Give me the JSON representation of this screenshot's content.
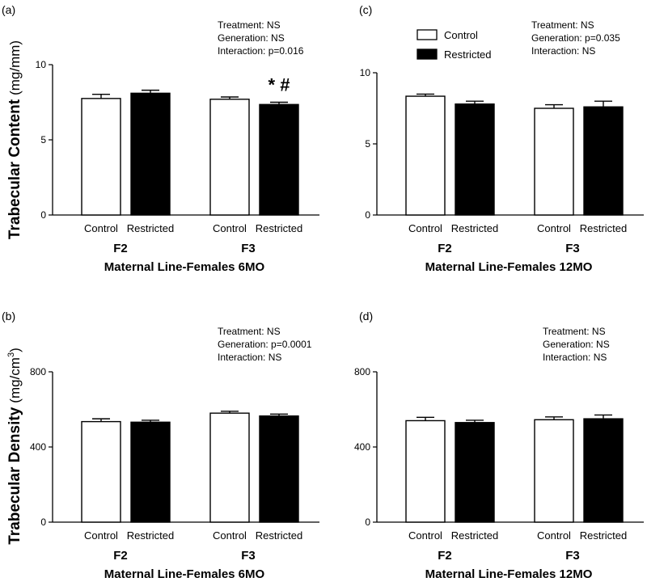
{
  "figure": {
    "y_title_top": "Trabecular Content",
    "y_unit_top": "(mg/mm)",
    "y_title_bottom": "Trabecular Density",
    "y_unit_bottom": "(mg/cm",
    "y_unit_bottom_sup": "3",
    "y_unit_bottom_close": ")"
  },
  "chart_data": [
    {
      "id": "a",
      "type": "bar",
      "panel_label": "(a)",
      "title": "Maternal Line-Females 6MO",
      "groups": [
        "F2",
        "F3"
      ],
      "categories": [
        "Control",
        "Restricted",
        "Control",
        "Restricted"
      ],
      "treatments": [
        "Control",
        "Restricted",
        "Control",
        "Restricted"
      ],
      "values": [
        7.75,
        8.1,
        7.7,
        7.35
      ],
      "errors": [
        0.28,
        0.2,
        0.15,
        0.15
      ],
      "fills": [
        "#ffffff",
        "#000000",
        "#ffffff",
        "#000000"
      ],
      "ylim": [
        0,
        10
      ],
      "yticks": [
        0,
        5,
        10
      ],
      "stats": [
        "Treatment: NS",
        "Generation: NS",
        "Interaction: p=0.016"
      ],
      "marker": "* #",
      "marker_bar": 3
    },
    {
      "id": "c",
      "type": "bar",
      "panel_label": "(c)",
      "title": "Maternal Line-Females 12MO",
      "groups": [
        "F2",
        "F3"
      ],
      "categories": [
        "Control",
        "Restricted",
        "Control",
        "Restricted"
      ],
      "treatments": [
        "Control",
        "Restricted",
        "Control",
        "Restricted"
      ],
      "values": [
        8.35,
        7.8,
        7.5,
        7.6
      ],
      "errors": [
        0.15,
        0.2,
        0.25,
        0.4
      ],
      "fills": [
        "#ffffff",
        "#000000",
        "#ffffff",
        "#000000"
      ],
      "ylim": [
        0,
        10
      ],
      "yticks": [
        0,
        5,
        10
      ],
      "stats": [
        "Treatment: NS",
        "Generation: p=0.035",
        "Interaction: NS"
      ],
      "legend": [
        {
          "label": "Control",
          "fill": "#ffffff"
        },
        {
          "label": "Restricted",
          "fill": "#000000"
        }
      ]
    },
    {
      "id": "b",
      "type": "bar",
      "panel_label": "(b)",
      "title": "Maternal Line-Females 6MO",
      "groups": [
        "F2",
        "F3"
      ],
      "categories": [
        "Control",
        "Restricted",
        "Control",
        "Restricted"
      ],
      "treatments": [
        "Control",
        "Restricted",
        "Control",
        "Restricted"
      ],
      "values": [
        535,
        532,
        580,
        565
      ],
      "errors": [
        15,
        10,
        10,
        10
      ],
      "fills": [
        "#ffffff",
        "#000000",
        "#ffffff",
        "#000000"
      ],
      "ylim": [
        0,
        800
      ],
      "yticks": [
        0,
        400,
        800
      ],
      "stats": [
        "Treatment: NS",
        "Generation: p=0.0001",
        "Interaction: NS"
      ]
    },
    {
      "id": "d",
      "type": "bar",
      "panel_label": "(d)",
      "title": "Maternal Line-Females 12MO",
      "groups": [
        "F2",
        "F3"
      ],
      "categories": [
        "Control",
        "Restricted",
        "Control",
        "Restricted"
      ],
      "treatments": [
        "Control",
        "Restricted",
        "Control",
        "Restricted"
      ],
      "values": [
        540,
        530,
        545,
        550
      ],
      "errors": [
        18,
        12,
        15,
        20
      ],
      "fills": [
        "#ffffff",
        "#000000",
        "#ffffff",
        "#000000"
      ],
      "ylim": [
        0,
        800
      ],
      "yticks": [
        0,
        400,
        800
      ],
      "stats": [
        "Treatment: NS",
        "Generation: NS",
        "Interaction: NS"
      ]
    }
  ]
}
